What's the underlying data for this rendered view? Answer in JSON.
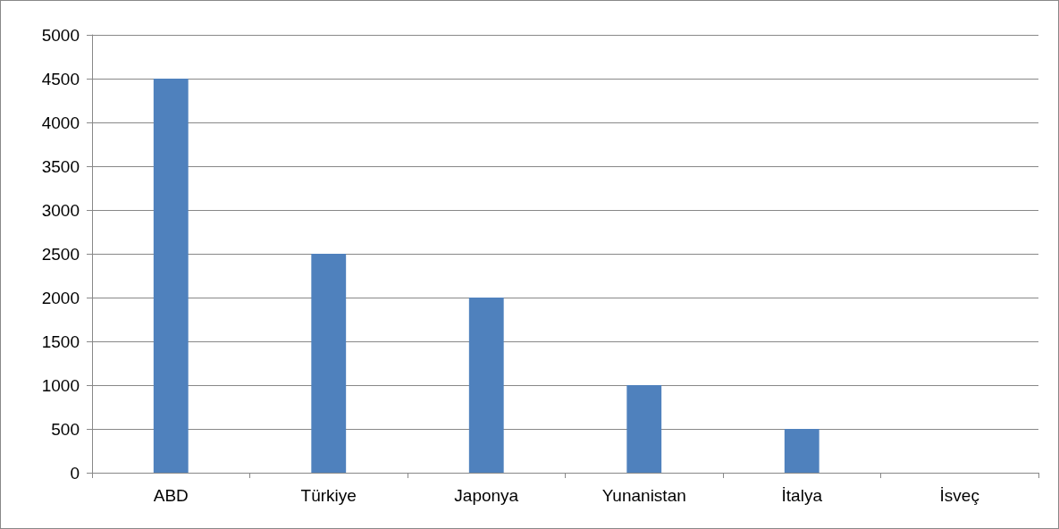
{
  "chart_data": {
    "type": "bar",
    "categories": [
      "ABD",
      "Türkiye",
      "Japonya",
      "Yunanistan",
      "İtalya",
      "İsveç"
    ],
    "values": [
      4500,
      2500,
      2000,
      1000,
      500,
      0
    ],
    "color": "#4f81bd",
    "ylim": [
      0,
      5000
    ],
    "yticks": [
      0,
      500,
      1000,
      1500,
      2000,
      2500,
      3000,
      3500,
      4000,
      4500,
      5000
    ],
    "grid": "y"
  }
}
